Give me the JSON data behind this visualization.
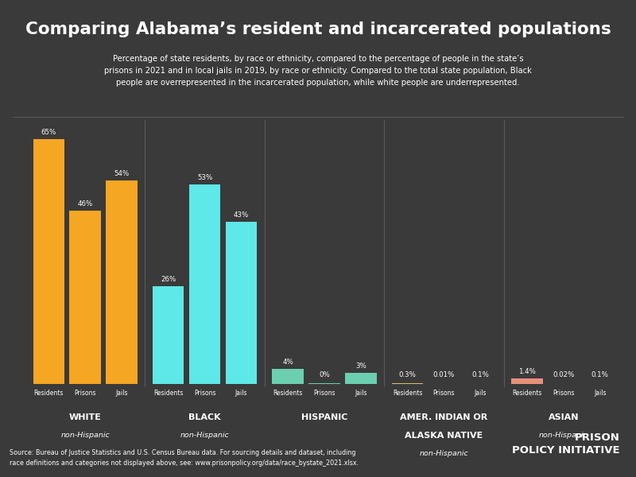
{
  "title": "Comparing Alabama’s resident and incarcerated populations",
  "subtitle": "Percentage of state residents, by race or ethnicity, compared to the percentage of people in the state’s\nprisons in 2021 and in local jails in 2019, by race or ethnicity. Compared to the total state population, Black\npeople are overrepresented in the incarcerated population, while white people are underrepresented.",
  "background_color": "#3a3a3a",
  "text_color": "#ffffff",
  "source_text": "Source: Bureau of Justice Statistics and U.S. Census Bureau data. For sourcing details and dataset, including\nrace definitions and categories not displayed above, see: www.prisonpolicy.org/data/race_bystate_2021.xlsx.",
  "groups": [
    {
      "label": "WHITE",
      "sublabel": "non-Hispanic",
      "bar_color": "#f5a623",
      "values": [
        65,
        46,
        54
      ],
      "value_labels": [
        "65%",
        "46%",
        "54%"
      ]
    },
    {
      "label": "BLACK",
      "sublabel": "non-Hispanic",
      "bar_color": "#5ee8e8",
      "values": [
        26,
        53,
        43
      ],
      "value_labels": [
        "26%",
        "53%",
        "43%"
      ]
    },
    {
      "label": "HISPANIC",
      "sublabel": "",
      "bar_color": "#6bcfb0",
      "values": [
        4,
        0.3,
        3
      ],
      "value_labels": [
        "4%",
        "0%",
        "3%"
      ]
    },
    {
      "label": "AMER. INDIAN OR\nALASKA NATIVE",
      "sublabel": "non-Hispanic",
      "bar_color": "#d4c070",
      "values": [
        0.3,
        0.01,
        0.1
      ],
      "value_labels": [
        "0.3%",
        "0.01%",
        "0.1%"
      ]
    },
    {
      "label": "ASIAN",
      "sublabel": "non-Hispanic",
      "bar_color": "#e8907a",
      "values": [
        1.4,
        0.02,
        0.1
      ],
      "value_labels": [
        "1.4%",
        "0.02%",
        "0.1%"
      ]
    }
  ],
  "bar_labels": [
    "Residents",
    "Prisons",
    "Jails"
  ],
  "ylim_max": 70,
  "divider_color": "#5a5a5a"
}
